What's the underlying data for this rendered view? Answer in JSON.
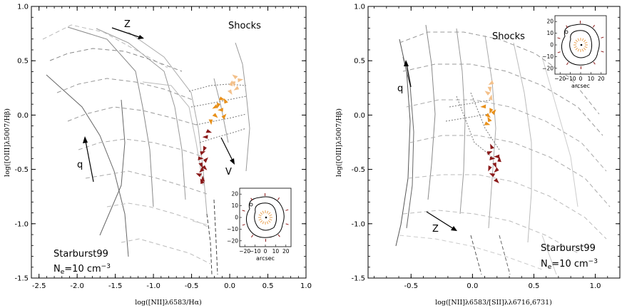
{
  "chart_data": [
    {
      "type": "scatter",
      "title": "",
      "xlabel": "log([NII]λ6583/Hα)",
      "ylabel": "log([OIII]λ5007/Hβ)",
      "xlim": [
        -2.6,
        1.0
      ],
      "ylim": [
        -1.5,
        1.0
      ],
      "xticks": [
        "-2.5",
        "-2.0",
        "-1.5",
        "-1.0",
        "-0.5",
        "0.0",
        "0.5",
        "1.0"
      ],
      "yticks": [
        "-1.5",
        "-1.0",
        "-0.5",
        "0.0",
        "0.5",
        "1.0"
      ],
      "annotations": {
        "shocks": "Shocks",
        "z": "Z",
        "q": "q",
        "v": "V",
        "model": "Starburst99",
        "density_prefix": "N",
        "density_sub": "e",
        "density_value": "=10 cm",
        "density_exp": "−3"
      },
      "grid": false,
      "legend": "none",
      "series": [
        {
          "color": "#8b1a1a",
          "points": [
            [
              -0.4,
              -0.4
            ],
            [
              -0.38,
              -0.45
            ],
            [
              -0.36,
              -0.5
            ],
            [
              -0.39,
              -0.55
            ],
            [
              -0.35,
              -0.6
            ],
            [
              -0.37,
              -0.35
            ],
            [
              -0.34,
              -0.48
            ],
            [
              -0.33,
              -0.3
            ],
            [
              -0.3,
              -0.2
            ],
            [
              -0.36,
              -0.62
            ],
            [
              -0.32,
              -0.42
            ],
            [
              -0.29,
              -0.15
            ]
          ]
        },
        {
          "color": "#e8901a",
          "points": [
            [
              -0.2,
              0.0
            ],
            [
              -0.15,
              0.1
            ],
            [
              -0.1,
              0.05
            ],
            [
              -0.05,
              0.12
            ],
            [
              -0.08,
              -0.02
            ],
            [
              -0.12,
              0.15
            ],
            [
              -0.25,
              -0.05
            ],
            [
              -0.18,
              0.08
            ]
          ]
        },
        {
          "color": "#f3c08a",
          "points": [
            [
              0.05,
              0.3
            ],
            [
              0.1,
              0.25
            ],
            [
              0.08,
              0.35
            ],
            [
              0.02,
              0.28
            ],
            [
              0.12,
              0.32
            ],
            [
              0.0,
              0.22
            ]
          ]
        }
      ]
    },
    {
      "type": "scatter",
      "title": "",
      "xlabel": "log([NII]λ6583/[SII]λλ6716,6731)",
      "ylabel": "log([OIII]λ5007/Hβ)",
      "xlim": [
        -0.85,
        1.2
      ],
      "ylim": [
        -1.5,
        1.0
      ],
      "xticks": [
        "-0.5",
        "0.0",
        "0.5",
        "1.0"
      ],
      "yticks": [
        "-1.5",
        "-1.0",
        "-0.5",
        "0.0",
        "0.5",
        "1.0"
      ],
      "annotations": {
        "shocks": "Shocks",
        "z": "Z",
        "q": "q",
        "model": "Starburst99",
        "density_prefix": "N",
        "density_sub": "e",
        "density_value": "=10 cm",
        "density_exp": "−3"
      },
      "grid": false,
      "legend": "none",
      "series": [
        {
          "color": "#8b1a1a",
          "points": [
            [
              0.15,
              -0.4
            ],
            [
              0.18,
              -0.45
            ],
            [
              0.2,
              -0.5
            ],
            [
              0.17,
              -0.55
            ],
            [
              0.22,
              -0.42
            ],
            [
              0.13,
              -0.35
            ],
            [
              0.19,
              -0.6
            ],
            [
              0.14,
              -0.48
            ],
            [
              0.21,
              -0.38
            ],
            [
              0.16,
              -0.3
            ]
          ]
        },
        {
          "color": "#e8901a",
          "points": [
            [
              0.12,
              0.0
            ],
            [
              0.15,
              0.05
            ],
            [
              0.1,
              0.08
            ],
            [
              0.14,
              -0.05
            ],
            [
              0.17,
              0.02
            ],
            [
              0.11,
              -0.08
            ]
          ]
        },
        {
          "color": "#f3c08a",
          "points": [
            [
              0.14,
              0.25
            ],
            [
              0.16,
              0.3
            ],
            [
              0.13,
              0.2
            ],
            [
              0.15,
              0.15
            ]
          ]
        }
      ]
    }
  ],
  "inset": {
    "ticks": [
      "20",
      "10",
      "0",
      "−10",
      "−20"
    ],
    "xticks": [
      "−20",
      "−10",
      "0",
      "10",
      "20"
    ],
    "xlabel": "arcsec"
  }
}
